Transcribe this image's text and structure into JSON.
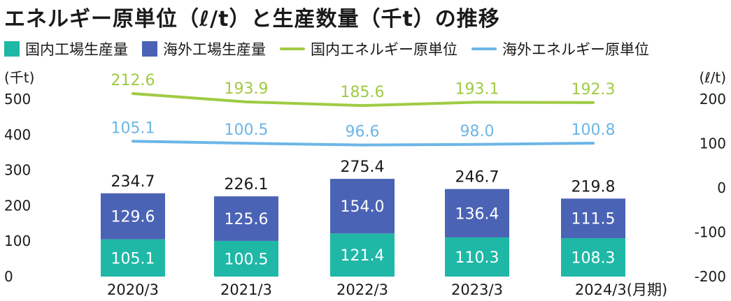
{
  "chart_data": {
    "type": "bar",
    "title": "エネルギー原単位（ℓ/t）と生産数量（千t）の推移",
    "categories": [
      "2020/3",
      "2021/3",
      "2022/3",
      "2023/3",
      "2024/3"
    ],
    "category_suffix": "(月期)",
    "left_axis": {
      "unit": "(千t)",
      "ticks": [
        0,
        100,
        200,
        300,
        400,
        500
      ],
      "ylim": [
        0,
        500
      ]
    },
    "right_axis": {
      "unit": "(ℓ/t)",
      "ticks": [
        -200,
        -100,
        0,
        100,
        200
      ],
      "ylim": [
        -200,
        200
      ]
    },
    "bar_series": [
      {
        "name": "国内工場生産量",
        "color": "#1fb8a6",
        "values": [
          105.1,
          100.5,
          121.4,
          110.3,
          108.3
        ]
      },
      {
        "name": "海外工場生産量",
        "color": "#4b63b5",
        "values": [
          129.6,
          125.6,
          154.0,
          136.4,
          111.5
        ]
      }
    ],
    "totals": [
      234.7,
      226.1,
      275.4,
      246.7,
      219.8
    ],
    "line_series": [
      {
        "name": "国内エネルギー原単位",
        "color": "#9fcb43",
        "axis": "right",
        "values": [
          212.6,
          193.9,
          185.6,
          193.1,
          192.3
        ]
      },
      {
        "name": "海外エネルギー原単位",
        "color": "#6cb6e6",
        "axis": "right",
        "values": [
          105.1,
          100.5,
          96.6,
          98.0,
          100.8
        ]
      }
    ],
    "grid": false,
    "legend_position": "top-left"
  }
}
